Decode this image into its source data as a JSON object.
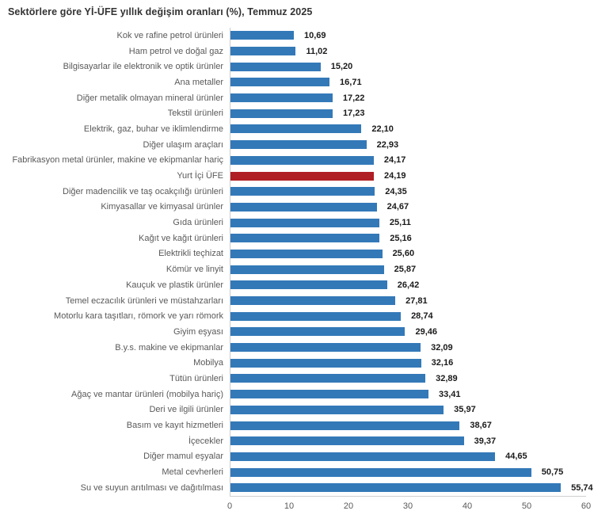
{
  "title": "Sektörlere göre Yİ-ÜFE yıllık değişim oranları (%), Temmuz 2025",
  "chart_data": {
    "type": "bar",
    "orientation": "horizontal",
    "title": "Sektörlere göre Yİ-ÜFE yıllık değişim oranları (%), Temmuz 2025",
    "xlabel": "",
    "ylabel": "",
    "xlim": [
      0,
      60
    ],
    "x_ticks": [
      0,
      10,
      20,
      30,
      40,
      50,
      60
    ],
    "grid": false,
    "legend": "none",
    "bar_color": "#3379b8",
    "highlight_color": "#b01f24",
    "highlight_index": 9,
    "highlight_category": "Yurt İçi ÜFE",
    "categories": [
      "Kok ve rafine petrol ürünleri",
      "Ham petrol ve doğal gaz",
      "Bilgisayarlar ile elektronik ve optik ürünler",
      "Ana metaller",
      "Diğer metalik olmayan mineral ürünler",
      "Tekstil ürünleri",
      "Elektrik, gaz, buhar ve iklimlendirme",
      "Diğer ulaşım araçları",
      "Fabrikasyon metal ürünler, makine ve ekipmanlar hariç",
      "Yurt İçi ÜFE",
      "Diğer madencilik ve taş ocakçılığı ürünleri",
      "Kimyasallar ve kimyasal ürünler",
      "Gıda ürünleri",
      "Kağıt ve kağıt ürünleri",
      "Elektrikli teçhizat",
      "Kömür ve linyit",
      "Kauçuk ve plastik ürünler",
      "Temel eczacılık ürünleri ve müstahzarları",
      "Motorlu kara taşıtları, römork ve yarı römork",
      "Giyim eşyası",
      "B.y.s. makine ve ekipmanlar",
      "Mobilya",
      "Tütün ürünleri",
      "Ağaç ve mantar ürünleri (mobilya hariç)",
      "Deri ve ilgili ürünler",
      "Basım ve kayıt hizmetleri",
      "İçecekler",
      "Diğer mamul eşyalar",
      "Metal cevherleri",
      "Su ve suyun arıtılması ve dağıtılması"
    ],
    "values": [
      10.69,
      11.02,
      15.2,
      16.71,
      17.22,
      17.23,
      22.1,
      22.93,
      24.17,
      24.19,
      24.35,
      24.67,
      25.11,
      25.16,
      25.6,
      25.87,
      26.42,
      27.81,
      28.74,
      29.46,
      32.09,
      32.16,
      32.89,
      33.41,
      35.97,
      38.67,
      39.37,
      44.65,
      50.75,
      55.74
    ],
    "value_labels": [
      "10,69",
      "11,02",
      "15,20",
      "16,71",
      "17,22",
      "17,23",
      "22,10",
      "22,93",
      "24,17",
      "24,19",
      "24,35",
      "24,67",
      "25,11",
      "25,16",
      "25,60",
      "25,87",
      "26,42",
      "27,81",
      "28,74",
      "29,46",
      "32,09",
      "32,16",
      "32,89",
      "33,41",
      "35,97",
      "38,67",
      "39,37",
      "44,65",
      "50,75",
      "55,74"
    ]
  }
}
